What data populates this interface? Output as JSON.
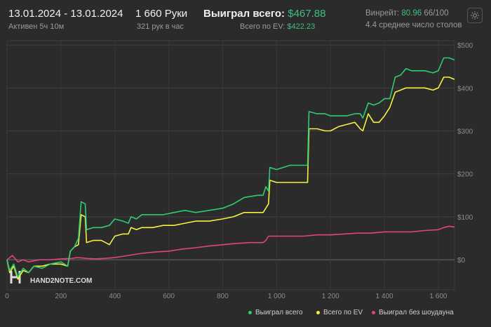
{
  "header": {
    "date_range": "13.01.2024 - 13.01.2024",
    "active_time": "Активен 5ч 10м",
    "hands": "1 660 Руки",
    "hands_per_hour": "321 рук в час",
    "won_total_label": "Выиграл всего:",
    "won_total_value": "$467.88",
    "ev_total_label": "Всего по EV:",
    "ev_total_value": "$422.23",
    "winrate_label": "Винрейт:",
    "winrate_value": "80.96",
    "winrate_suffix": "66/100",
    "avg_tables": "4.4 среднее число столов",
    "settings_icon": "gear-icon"
  },
  "watermark": "HAND2NOTE.COM",
  "colors": {
    "won_total": "#2ecc71",
    "ev_total": "#f4f142",
    "no_showdown": "#e0457b"
  },
  "legend": [
    "Выиграл всего",
    "Всего по EV",
    "Выиграл без шоудауна"
  ],
  "chart_data": {
    "type": "line",
    "xlim": [
      0,
      1660
    ],
    "ylim": [
      -70,
      510
    ],
    "x_ticks": [
      0,
      200,
      400,
      600,
      800,
      1000,
      1200,
      1400,
      1600
    ],
    "x_tick_labels": [
      "0",
      "200",
      "400",
      "600",
      "800",
      "1 000",
      "1 200",
      "1 400",
      "1 600"
    ],
    "y_ticks": [
      0,
      100,
      200,
      300,
      400,
      500
    ],
    "y_tick_labels": [
      "$0",
      "$100",
      "$200",
      "$300",
      "$400",
      "$500"
    ],
    "grid": true,
    "legend_position": "bottom-right",
    "series": [
      {
        "name": "Выиграл всего",
        "color": "#2ecc71",
        "points": [
          [
            0,
            0
          ],
          [
            10,
            -25
          ],
          [
            25,
            -10
          ],
          [
            40,
            -40
          ],
          [
            60,
            -20
          ],
          [
            80,
            -30
          ],
          [
            100,
            -15
          ],
          [
            130,
            -20
          ],
          [
            160,
            -10
          ],
          [
            200,
            -5
          ],
          [
            225,
            -15
          ],
          [
            235,
            20
          ],
          [
            250,
            30
          ],
          [
            265,
            50
          ],
          [
            275,
            135
          ],
          [
            290,
            130
          ],
          [
            295,
            70
          ],
          [
            320,
            75
          ],
          [
            350,
            75
          ],
          [
            380,
            80
          ],
          [
            400,
            95
          ],
          [
            430,
            90
          ],
          [
            450,
            85
          ],
          [
            460,
            100
          ],
          [
            480,
            95
          ],
          [
            500,
            105
          ],
          [
            540,
            105
          ],
          [
            580,
            105
          ],
          [
            620,
            110
          ],
          [
            660,
            115
          ],
          [
            700,
            110
          ],
          [
            750,
            115
          ],
          [
            800,
            120
          ],
          [
            840,
            130
          ],
          [
            880,
            145
          ],
          [
            930,
            150
          ],
          [
            950,
            150
          ],
          [
            960,
            170
          ],
          [
            970,
            160
          ],
          [
            975,
            215
          ],
          [
            1000,
            210
          ],
          [
            1050,
            220
          ],
          [
            1100,
            220
          ],
          [
            1115,
            220
          ],
          [
            1120,
            345
          ],
          [
            1150,
            340
          ],
          [
            1180,
            340
          ],
          [
            1200,
            335
          ],
          [
            1230,
            335
          ],
          [
            1260,
            335
          ],
          [
            1290,
            340
          ],
          [
            1310,
            340
          ],
          [
            1320,
            330
          ],
          [
            1340,
            365
          ],
          [
            1360,
            360
          ],
          [
            1380,
            365
          ],
          [
            1400,
            375
          ],
          [
            1420,
            375
          ],
          [
            1440,
            425
          ],
          [
            1460,
            430
          ],
          [
            1480,
            445
          ],
          [
            1500,
            440
          ],
          [
            1520,
            440
          ],
          [
            1550,
            440
          ],
          [
            1580,
            435
          ],
          [
            1600,
            440
          ],
          [
            1620,
            470
          ],
          [
            1640,
            470
          ],
          [
            1660,
            465
          ]
        ]
      },
      {
        "name": "Всего по EV",
        "color": "#f4f142",
        "points": [
          [
            0,
            0
          ],
          [
            10,
            -30
          ],
          [
            25,
            -15
          ],
          [
            40,
            -45
          ],
          [
            60,
            -25
          ],
          [
            80,
            -30
          ],
          [
            100,
            -15
          ],
          [
            130,
            -15
          ],
          [
            160,
            -10
          ],
          [
            200,
            -10
          ],
          [
            225,
            -15
          ],
          [
            235,
            20
          ],
          [
            250,
            30
          ],
          [
            265,
            35
          ],
          [
            275,
            105
          ],
          [
            290,
            100
          ],
          [
            295,
            40
          ],
          [
            320,
            45
          ],
          [
            350,
            45
          ],
          [
            380,
            35
          ],
          [
            400,
            55
          ],
          [
            430,
            60
          ],
          [
            450,
            60
          ],
          [
            460,
            75
          ],
          [
            480,
            70
          ],
          [
            500,
            75
          ],
          [
            540,
            75
          ],
          [
            580,
            80
          ],
          [
            620,
            80
          ],
          [
            660,
            85
          ],
          [
            700,
            90
          ],
          [
            750,
            90
          ],
          [
            800,
            95
          ],
          [
            840,
            100
          ],
          [
            880,
            110
          ],
          [
            930,
            110
          ],
          [
            950,
            110
          ],
          [
            960,
            120
          ],
          [
            970,
            130
          ],
          [
            975,
            185
          ],
          [
            1000,
            180
          ],
          [
            1050,
            180
          ],
          [
            1100,
            180
          ],
          [
            1115,
            180
          ],
          [
            1120,
            305
          ],
          [
            1150,
            305
          ],
          [
            1180,
            300
          ],
          [
            1200,
            300
          ],
          [
            1230,
            310
          ],
          [
            1260,
            315
          ],
          [
            1290,
            320
          ],
          [
            1310,
            305
          ],
          [
            1320,
            300
          ],
          [
            1340,
            340
          ],
          [
            1360,
            320
          ],
          [
            1380,
            320
          ],
          [
            1400,
            335
          ],
          [
            1420,
            355
          ],
          [
            1440,
            390
          ],
          [
            1460,
            395
          ],
          [
            1480,
            400
          ],
          [
            1500,
            400
          ],
          [
            1520,
            400
          ],
          [
            1550,
            400
          ],
          [
            1580,
            395
          ],
          [
            1600,
            400
          ],
          [
            1620,
            425
          ],
          [
            1640,
            425
          ],
          [
            1660,
            420
          ]
        ]
      },
      {
        "name": "Выиграл без шоудауна",
        "color": "#e0457b",
        "points": [
          [
            0,
            0
          ],
          [
            20,
            10
          ],
          [
            40,
            -5
          ],
          [
            60,
            0
          ],
          [
            80,
            -5
          ],
          [
            120,
            0
          ],
          [
            160,
            0
          ],
          [
            200,
            2
          ],
          [
            240,
            3
          ],
          [
            260,
            5
          ],
          [
            300,
            3
          ],
          [
            330,
            2
          ],
          [
            360,
            3
          ],
          [
            400,
            5
          ],
          [
            450,
            10
          ],
          [
            500,
            15
          ],
          [
            550,
            18
          ],
          [
            600,
            20
          ],
          [
            650,
            25
          ],
          [
            700,
            28
          ],
          [
            750,
            32
          ],
          [
            800,
            35
          ],
          [
            850,
            38
          ],
          [
            900,
            40
          ],
          [
            950,
            40
          ],
          [
            960,
            45
          ],
          [
            970,
            55
          ],
          [
            1000,
            55
          ],
          [
            1050,
            55
          ],
          [
            1100,
            55
          ],
          [
            1150,
            58
          ],
          [
            1200,
            58
          ],
          [
            1250,
            60
          ],
          [
            1300,
            62
          ],
          [
            1350,
            62
          ],
          [
            1400,
            65
          ],
          [
            1450,
            65
          ],
          [
            1500,
            65
          ],
          [
            1550,
            68
          ],
          [
            1600,
            70
          ],
          [
            1620,
            75
          ],
          [
            1640,
            78
          ],
          [
            1660,
            76
          ]
        ]
      }
    ]
  }
}
